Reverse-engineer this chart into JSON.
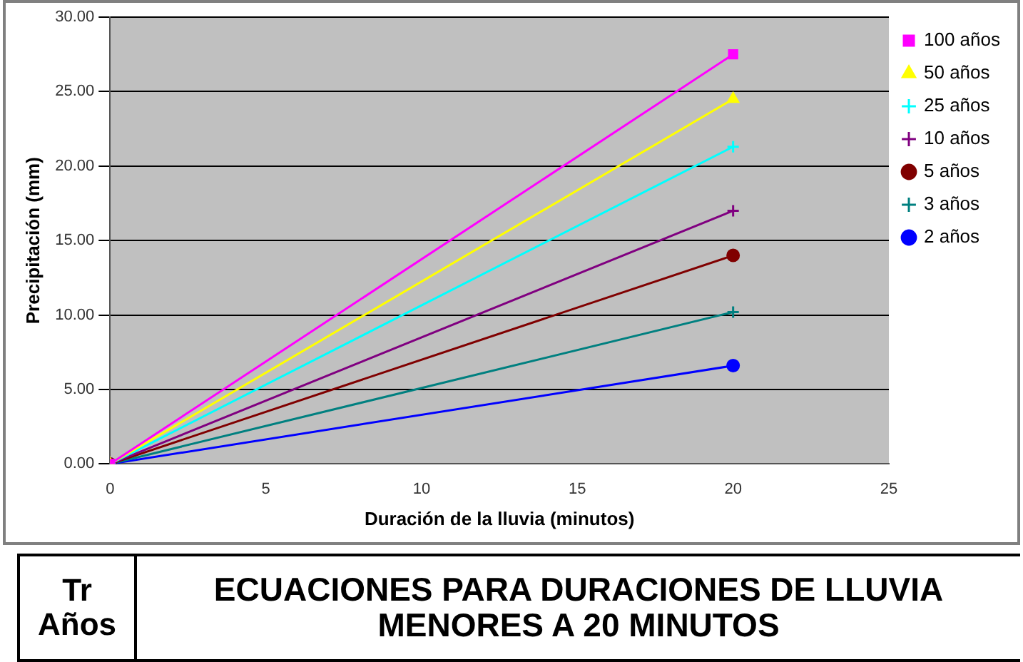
{
  "chart_data": {
    "type": "line",
    "xlabel": "Duración de la lluvia (minutos)",
    "ylabel": "Precipitación (mm)",
    "x": [
      0,
      20
    ],
    "xlim": [
      0,
      25
    ],
    "xticks": [
      0,
      5,
      10,
      15,
      20,
      25
    ],
    "ylim": [
      0,
      30
    ],
    "yticks": [
      {
        "value": 0,
        "label": "0.00"
      },
      {
        "value": 5,
        "label": "5.00"
      },
      {
        "value": 10,
        "label": "10.00"
      },
      {
        "value": 15,
        "label": "15.00"
      },
      {
        "value": 20,
        "label": "20.00"
      },
      {
        "value": 25,
        "label": "25.00"
      },
      {
        "value": 30,
        "label": "30.00"
      }
    ],
    "grid": "y",
    "legend": "right",
    "series": [
      {
        "name": "100 años",
        "color": "#ff00ff",
        "marker": "square",
        "values": [
          0,
          27.5
        ]
      },
      {
        "name": "50 años",
        "color": "#ffff00",
        "marker": "triangle",
        "values": [
          0,
          24.5
        ]
      },
      {
        "name": "25 años",
        "color": "#00ffff",
        "marker": "cross",
        "values": [
          0,
          21.3
        ]
      },
      {
        "name": "10 años",
        "color": "#800080",
        "marker": "cross",
        "values": [
          0,
          17.0
        ]
      },
      {
        "name": "5 años",
        "color": "#800000",
        "marker": "circle",
        "values": [
          0,
          14.0
        ]
      },
      {
        "name": "3 años",
        "color": "#008080",
        "marker": "cross",
        "values": [
          0,
          10.2
        ]
      },
      {
        "name": "2 años",
        "color": "#0000ff",
        "marker": "circle",
        "values": [
          0,
          6.6
        ]
      }
    ],
    "annotations": [
      "Tr Años",
      "ECUACIONES PARA DURACIONES DE LLUVIA MENORES A 20 MINUTOS"
    ]
  }
}
